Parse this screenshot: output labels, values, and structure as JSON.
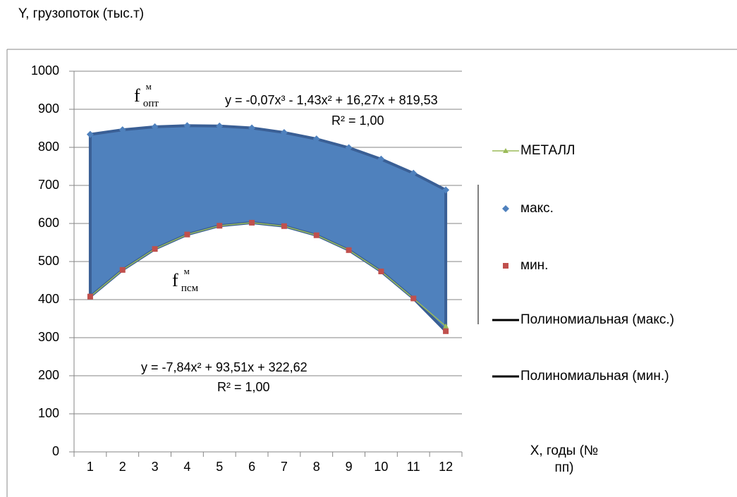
{
  "chart_data": {
    "type": "line",
    "y_label": "Y, грузопоток (тыс.т)",
    "x_label": "X, годы (№ пп)",
    "categories": [
      "1",
      "2",
      "3",
      "4",
      "5",
      "6",
      "7",
      "8",
      "9",
      "10",
      "11",
      "12"
    ],
    "series": [
      {
        "name": "МЕТАЛЛ",
        "color": "#9bbb59",
        "marker": "triangle",
        "values": [
          408,
          478,
          533,
          571,
          594,
          602,
          593,
          569,
          530,
          474,
          403,
          330
        ]
      },
      {
        "name": "макс.",
        "color": "#4f81bd",
        "marker": "diamond",
        "values": [
          834,
          846,
          854,
          857,
          856,
          851,
          839,
          822,
          799,
          769,
          732,
          688
        ]
      },
      {
        "name": "мин.",
        "color": "#c0504d",
        "marker": "square",
        "values": [
          408,
          478,
          533,
          571,
          594,
          602,
          593,
          569,
          530,
          474,
          403,
          317
        ]
      },
      {
        "name": "Полиномиальная (макс.)",
        "color": "#000000",
        "marker": "none",
        "values": [
          834,
          846,
          854,
          857,
          856,
          851,
          839,
          822,
          799,
          769,
          732,
          688
        ]
      },
      {
        "name": "Полиномиальная (мин.)",
        "color": "#000000",
        "marker": "none",
        "values": [
          408,
          478,
          533,
          571,
          594,
          602,
          593,
          569,
          530,
          474,
          403,
          317
        ]
      }
    ],
    "ylim": [
      0,
      1000
    ],
    "yticks": [
      0,
      100,
      200,
      300,
      400,
      500,
      600,
      700,
      800,
      900,
      1000
    ],
    "grid": true,
    "legend": "right",
    "fill_color": "#4f81bd",
    "annotations": {
      "eq_max": "y = -0,07x³ - 1,43x² + 16,27x + 819,53",
      "r2_max": "R² = 1,00",
      "eq_min": "y = -7,84x² + 93,51x + 322,62",
      "r2_min": "R² = 1,00",
      "f_opt": {
        "base": "f",
        "sup": "м",
        "sub": "опт"
      },
      "f_psm": {
        "base": "f",
        "sup": "м",
        "sub": "псм"
      }
    }
  }
}
